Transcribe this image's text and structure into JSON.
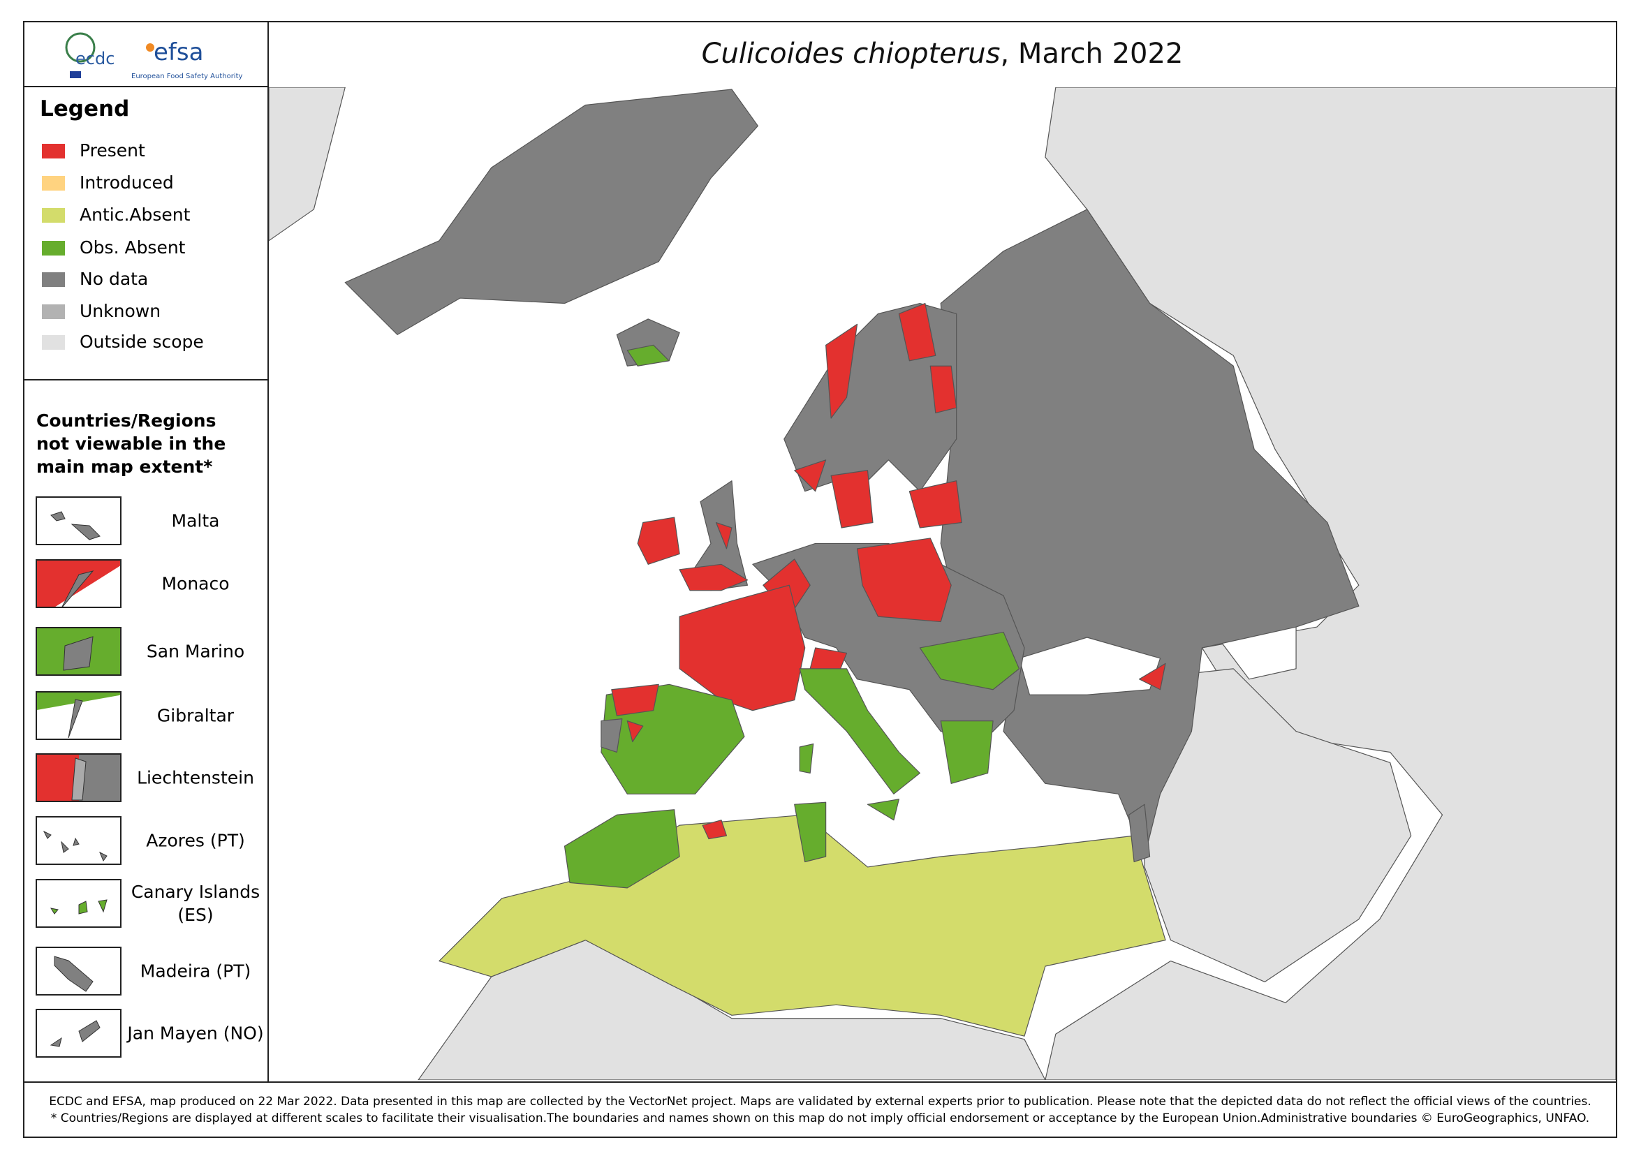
{
  "header": {
    "title_species": "Culicoides chiopterus",
    "title_rest": ", March 2022",
    "logo_ecdc": "ecdc",
    "logo_efsa": "efsa",
    "logo_efsa_sub": "European Food Safety Authority"
  },
  "legend": {
    "title": "Legend",
    "items": [
      {
        "label": "Present",
        "color": "#e3312f"
      },
      {
        "label": "Introduced",
        "color": "#ffd380"
      },
      {
        "label": "Antic.Absent",
        "color": "#d3dc6b"
      },
      {
        "label": "Obs. Absent",
        "color": "#66ad2d"
      },
      {
        "label": "No data",
        "color": "#808080"
      },
      {
        "label": "Unknown",
        "color": "#b2b2b2"
      },
      {
        "label": "Outside scope",
        "color": "#e1e1e1"
      }
    ]
  },
  "insets": {
    "title": "Countries/Regions not viewable in the main map extent*",
    "items": [
      "Malta",
      "Monaco",
      "San Marino",
      "Gibraltar",
      "Liechtenstein",
      "Azores (PT)",
      "Canary Islands (ES)",
      "Madeira (PT)",
      "Jan Mayen (NO)"
    ]
  },
  "footer": {
    "lines": [
      "ECDC and EFSA, map produced on 22 Mar 2022. Data presented in this map are collected by the VectorNet project. Maps are validated by external experts prior to publication. Please note that the depicted data do not reflect the official views of the countries.",
      "* Countries/Regions are displayed at different scales to facilitate their visualisation.The boundaries and names shown on this map do not imply official endorsement or acceptance by the European Union.Administrative boundaries © EuroGeographics, UNFAO."
    ]
  }
}
